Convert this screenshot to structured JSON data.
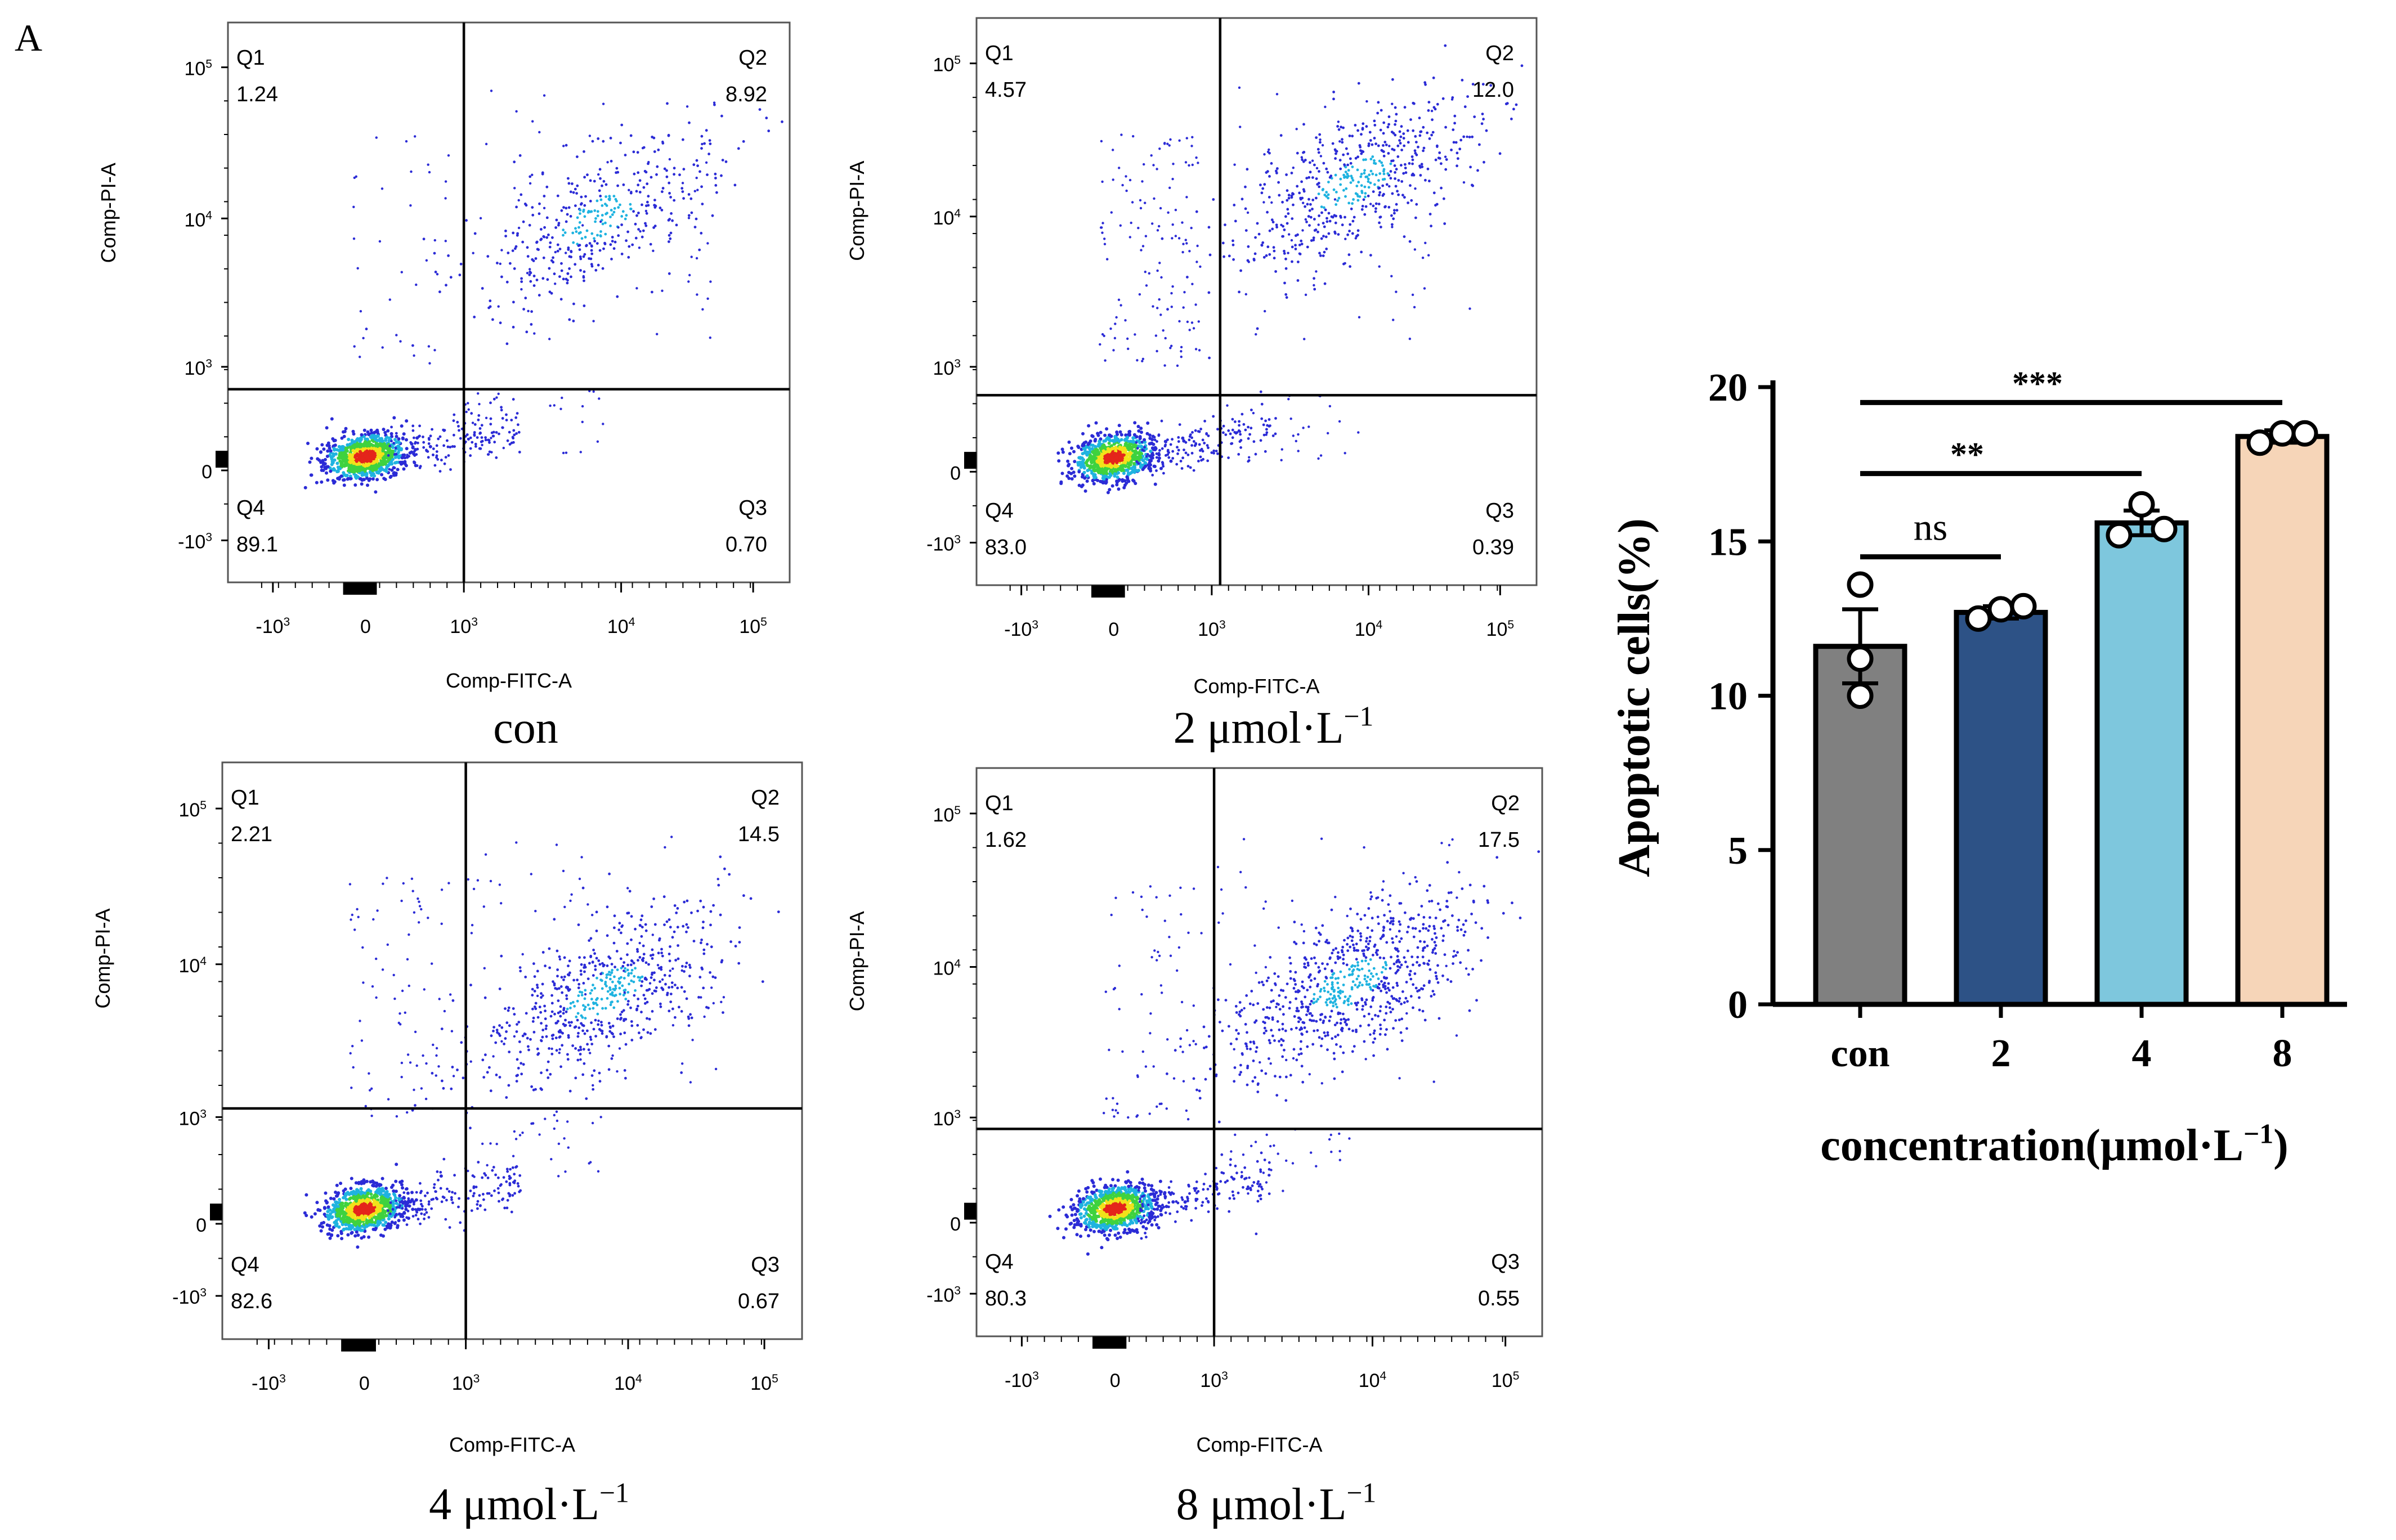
{
  "panel_label": "A",
  "colors": {
    "dot_blue": "#2b2bd6",
    "dot_cyan": "#1fb3e0",
    "dot_green": "#3fd23f",
    "dot_yellow": "#f2e21a",
    "dot_red": "#e4251b",
    "bar_con": "#808080",
    "bar_2": "#2d5286",
    "bar_4": "#7ec7dd",
    "bar_8": "#f6d5b8"
  },
  "chart_data": [
    {
      "type": "scatter",
      "name": "flow-con",
      "title": "con",
      "xlabel": "Comp-FITC-A",
      "ylabel": "Comp-PI-A",
      "x_ticks": [
        "-10",
        "0",
        "10",
        "10",
        "10"
      ],
      "x_tick_exps": [
        "3",
        "",
        "3",
        "4",
        "5"
      ],
      "y_ticks": [
        "10",
        "10",
        "10",
        "0",
        "-10"
      ],
      "y_tick_exps": [
        "5",
        "4",
        "3",
        "",
        "3"
      ],
      "quadrants": [
        {
          "name": "Q1",
          "value": "1.24"
        },
        {
          "name": "Q2",
          "value": "8.92"
        },
        {
          "name": "Q3",
          "value": "0.70"
        },
        {
          "name": "Q4",
          "value": "89.1"
        }
      ]
    },
    {
      "type": "scatter",
      "name": "flow-2",
      "title": "2 μmol·L",
      "title_sup": "−1",
      "xlabel": "Comp-FITC-A",
      "ylabel": "Comp-PI-A",
      "x_ticks": [
        "-10",
        "0",
        "10",
        "10",
        "10"
      ],
      "x_tick_exps": [
        "3",
        "",
        "3",
        "4",
        "5"
      ],
      "y_ticks": [
        "10",
        "10",
        "10",
        "0",
        "-10"
      ],
      "y_tick_exps": [
        "5",
        "4",
        "3",
        "",
        "3"
      ],
      "quadrants": [
        {
          "name": "Q1",
          "value": "4.57"
        },
        {
          "name": "Q2",
          "value": "12.0"
        },
        {
          "name": "Q3",
          "value": "0.39"
        },
        {
          "name": "Q4",
          "value": "83.0"
        }
      ]
    },
    {
      "type": "scatter",
      "name": "flow-4",
      "title": "4 μmol·L",
      "title_sup": "−1",
      "xlabel": "Comp-FITC-A",
      "ylabel": "Comp-PI-A",
      "x_ticks": [
        "-10",
        "0",
        "10",
        "10",
        "10"
      ],
      "x_tick_exps": [
        "3",
        "",
        "3",
        "4",
        "5"
      ],
      "y_ticks": [
        "10",
        "10",
        "10",
        "0",
        "-10"
      ],
      "y_tick_exps": [
        "5",
        "4",
        "3",
        "",
        "3"
      ],
      "quadrants": [
        {
          "name": "Q1",
          "value": "2.21"
        },
        {
          "name": "Q2",
          "value": "14.5"
        },
        {
          "name": "Q3",
          "value": "0.67"
        },
        {
          "name": "Q4",
          "value": "82.6"
        }
      ]
    },
    {
      "type": "scatter",
      "name": "flow-8",
      "title": "8 μmol·L",
      "title_sup": "−1",
      "xlabel": "Comp-FITC-A",
      "ylabel": "Comp-PI-A",
      "x_ticks": [
        "-10",
        "0",
        "10",
        "10",
        "10"
      ],
      "x_tick_exps": [
        "3",
        "",
        "3",
        "4",
        "5"
      ],
      "y_ticks": [
        "10",
        "10",
        "10",
        "0",
        "-10"
      ],
      "y_tick_exps": [
        "5",
        "4",
        "3",
        "",
        "3"
      ],
      "quadrants": [
        {
          "name": "Q1",
          "value": "1.62"
        },
        {
          "name": "Q2",
          "value": "17.5"
        },
        {
          "name": "Q3",
          "value": "0.55"
        },
        {
          "name": "Q4",
          "value": "80.3"
        }
      ]
    },
    {
      "type": "bar",
      "name": "apoptosis-bar",
      "categories": [
        "con",
        "2",
        "4",
        "8"
      ],
      "values": [
        11.6,
        12.7,
        15.6,
        18.4
      ],
      "sem": [
        1.2,
        0.2,
        0.4,
        0.2
      ],
      "points": [
        [
          13.6,
          10.0,
          11.2
        ],
        [
          12.5,
          12.8,
          12.9
        ],
        [
          15.2,
          16.2,
          15.4
        ],
        [
          18.2,
          18.5,
          18.5
        ]
      ],
      "ylabel": "Apoptotic cells(%)",
      "xlabel": "concentration(μmol·L",
      "xlabel_sup": "−1",
      "xlabel_end": ")",
      "ylim": [
        0,
        20
      ],
      "yticks": [
        "0",
        "5",
        "10",
        "15",
        "20"
      ],
      "significance": [
        {
          "from": "con",
          "to": "2",
          "label": "ns",
          "y": 14.5
        },
        {
          "from": "con",
          "to": "4",
          "label": "**",
          "y": 17.2
        },
        {
          "from": "con",
          "to": "8",
          "label": "***",
          "y": 19.5
        }
      ]
    }
  ]
}
